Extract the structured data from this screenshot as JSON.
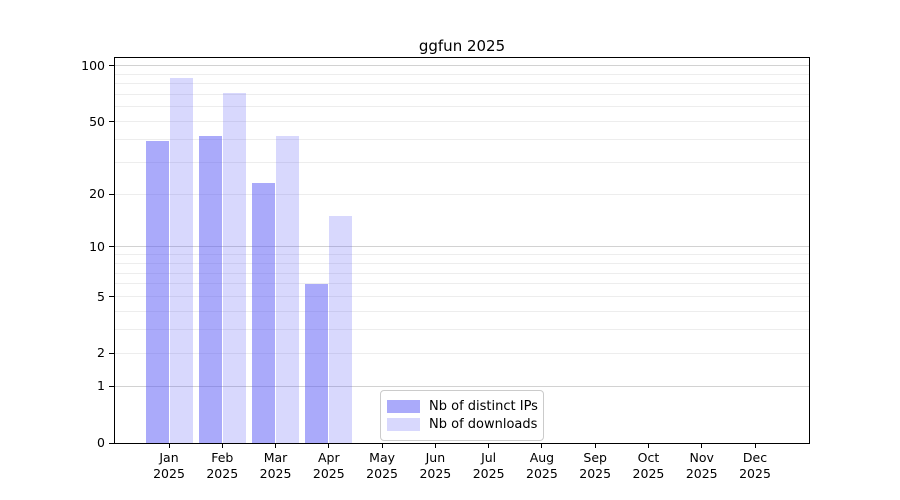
{
  "chart_data": {
    "type": "bar",
    "title": "ggfun 2025",
    "categories": [
      "Jan",
      "Feb",
      "Mar",
      "Apr",
      "May",
      "Jun",
      "Jul",
      "Aug",
      "Sep",
      "Oct",
      "Nov",
      "Dec"
    ],
    "category_sub_label": "2025",
    "series": [
      {
        "name": "Nb of distinct IPs",
        "color": "rgba(85,85,245,0.50)",
        "values": [
          39,
          42,
          23,
          6,
          null,
          null,
          null,
          null,
          null,
          null,
          null,
          null
        ]
      },
      {
        "name": "Nb of downloads",
        "color": "rgba(85,85,245,0.23)",
        "values": [
          86,
          71,
          42,
          15,
          null,
          null,
          null,
          null,
          null,
          null,
          null,
          null
        ]
      }
    ],
    "y_scale": "log1p",
    "y_ticks": [
      0,
      1,
      2,
      5,
      10,
      20,
      50,
      100
    ],
    "y_major_gridlines": [
      1,
      10,
      100
    ],
    "y_minor_gridlines": [
      2,
      3,
      4,
      5,
      6,
      7,
      8,
      9,
      20,
      30,
      40,
      50,
      60,
      70,
      80,
      90
    ],
    "ylim": [
      0,
      110
    ],
    "xlabel": "",
    "ylabel": "",
    "grid": "horizontal",
    "legend_position": "bottom-center-inside"
  },
  "colors": {
    "bar_ips": "rgba(85,85,245,0.50)",
    "bar_downloads": "rgba(85,85,245,0.23)",
    "gridline_minor": "#ededed",
    "gridline_major": "#d2d2d2",
    "spine": "#000000",
    "background": "#ffffff"
  }
}
